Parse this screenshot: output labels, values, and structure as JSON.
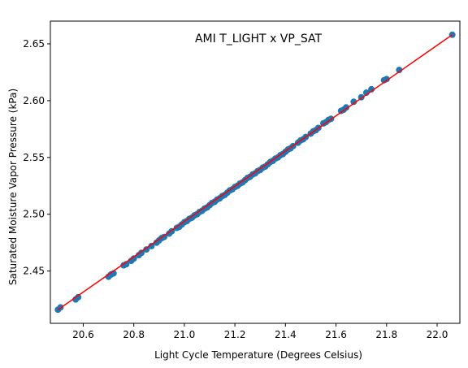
{
  "chart_data": {
    "type": "scatter",
    "title": "AMI T_LIGHT x VP_SAT",
    "xlabel": "Light Cycle Temperature (Degrees Celsius)",
    "ylabel": "Saturated Moisture Vapor Pressure (kPa)",
    "xlim": [
      20.47,
      22.09
    ],
    "ylim": [
      2.404,
      2.67
    ],
    "grid": false,
    "xticks": [
      20.6,
      20.8,
      21.0,
      21.2,
      21.4,
      21.6,
      21.8,
      22.0
    ],
    "xtick_labels": [
      "20.6",
      "20.8",
      "21.0",
      "21.2",
      "21.4",
      "21.6",
      "21.8",
      "22.0"
    ],
    "yticks": [
      2.45,
      2.5,
      2.55,
      2.6,
      2.65
    ],
    "ytick_labels": [
      "2.45",
      "2.50",
      "2.55",
      "2.60",
      "2.65"
    ],
    "colors": {
      "points": "#1f77b4",
      "fit_line": "#ff0000"
    },
    "fit_line": {
      "x": [
        20.5,
        22.06
      ],
      "y": [
        2.416,
        2.658
      ]
    },
    "x": [
      20.5,
      20.51,
      20.57,
      20.58,
      20.7,
      20.71,
      20.72,
      20.76,
      20.77,
      20.79,
      20.8,
      20.82,
      20.83,
      20.85,
      20.87,
      20.89,
      20.9,
      20.91,
      20.92,
      20.94,
      20.95,
      20.97,
      20.98,
      20.99,
      21.0,
      21.01,
      21.02,
      21.03,
      21.04,
      21.05,
      21.06,
      21.07,
      21.08,
      21.09,
      21.1,
      21.11,
      21.12,
      21.13,
      21.14,
      21.15,
      21.16,
      21.17,
      21.18,
      21.19,
      21.2,
      21.21,
      21.22,
      21.23,
      21.24,
      21.25,
      21.26,
      21.27,
      21.28,
      21.29,
      21.3,
      21.31,
      21.32,
      21.33,
      21.34,
      21.35,
      21.36,
      21.37,
      21.38,
      21.39,
      21.4,
      21.41,
      21.42,
      21.43,
      21.45,
      21.46,
      21.47,
      21.48,
      21.5,
      21.51,
      21.52,
      21.53,
      21.55,
      21.56,
      21.57,
      21.58,
      21.62,
      21.63,
      21.64,
      21.67,
      21.7,
      21.72,
      21.74,
      21.79,
      21.8,
      21.85,
      22.06
    ],
    "y": [
      2.416,
      2.418,
      2.425,
      2.427,
      2.445,
      2.447,
      2.448,
      2.455,
      2.456,
      2.459,
      2.461,
      2.464,
      2.466,
      2.469,
      2.472,
      2.475,
      2.477,
      2.479,
      2.48,
      2.483,
      2.485,
      2.488,
      2.489,
      2.491,
      2.493,
      2.494,
      2.496,
      2.497,
      2.499,
      2.5,
      2.502,
      2.503,
      2.505,
      2.506,
      2.508,
      2.51,
      2.511,
      2.513,
      2.514,
      2.516,
      2.517,
      2.519,
      2.521,
      2.522,
      2.524,
      2.525,
      2.527,
      2.528,
      2.53,
      2.532,
      2.533,
      2.535,
      2.536,
      2.538,
      2.539,
      2.541,
      2.542,
      2.544,
      2.546,
      2.547,
      2.549,
      2.55,
      2.552,
      2.553,
      2.555,
      2.557,
      2.558,
      2.56,
      2.563,
      2.565,
      2.566,
      2.568,
      2.571,
      2.573,
      2.574,
      2.576,
      2.58,
      2.581,
      2.583,
      2.584,
      2.591,
      2.592,
      2.594,
      2.599,
      2.603,
      2.607,
      2.61,
      2.618,
      2.619,
      2.627,
      2.658
    ]
  }
}
